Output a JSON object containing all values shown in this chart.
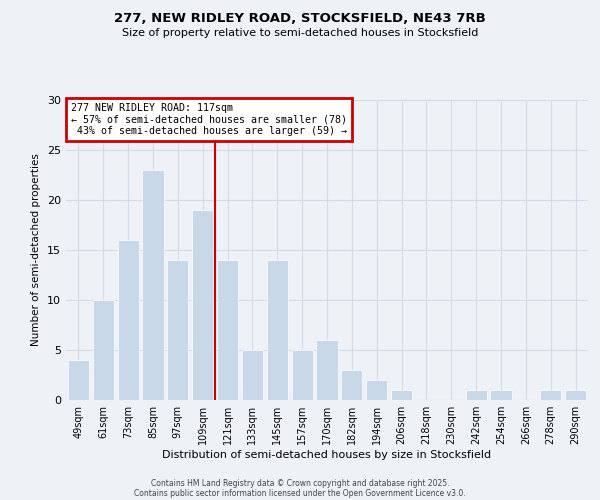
{
  "title1": "277, NEW RIDLEY ROAD, STOCKSFIELD, NE43 7RB",
  "title2": "Size of property relative to semi-detached houses in Stocksfield",
  "xlabel": "Distribution of semi-detached houses by size in Stocksfield",
  "ylabel": "Number of semi-detached properties",
  "categories": [
    "49sqm",
    "61sqm",
    "73sqm",
    "85sqm",
    "97sqm",
    "109sqm",
    "121sqm",
    "133sqm",
    "145sqm",
    "157sqm",
    "170sqm",
    "182sqm",
    "194sqm",
    "206sqm",
    "218sqm",
    "230sqm",
    "242sqm",
    "254sqm",
    "266sqm",
    "278sqm",
    "290sqm"
  ],
  "values": [
    4,
    10,
    16,
    23,
    14,
    19,
    14,
    5,
    14,
    5,
    6,
    3,
    2,
    1,
    0,
    0,
    1,
    1,
    0,
    1,
    1
  ],
  "highlight_index": 6,
  "bar_color": "#c8d8e8",
  "highlight_line_color": "#cc0000",
  "annotation_line1": "277 NEW RIDLEY ROAD: 117sqm",
  "annotation_line2": "← 57% of semi-detached houses are smaller (78)",
  "annotation_line3": " 43% of semi-detached houses are larger (59) →",
  "annotation_box_color": "#cc0000",
  "ylim": [
    0,
    30
  ],
  "yticks": [
    0,
    5,
    10,
    15,
    20,
    25,
    30
  ],
  "grid_color": "#d0dde8",
  "background_color": "#eef2f7",
  "footnote1": "Contains HM Land Registry data © Crown copyright and database right 2025.",
  "footnote2": "Contains public sector information licensed under the Open Government Licence v3.0."
}
